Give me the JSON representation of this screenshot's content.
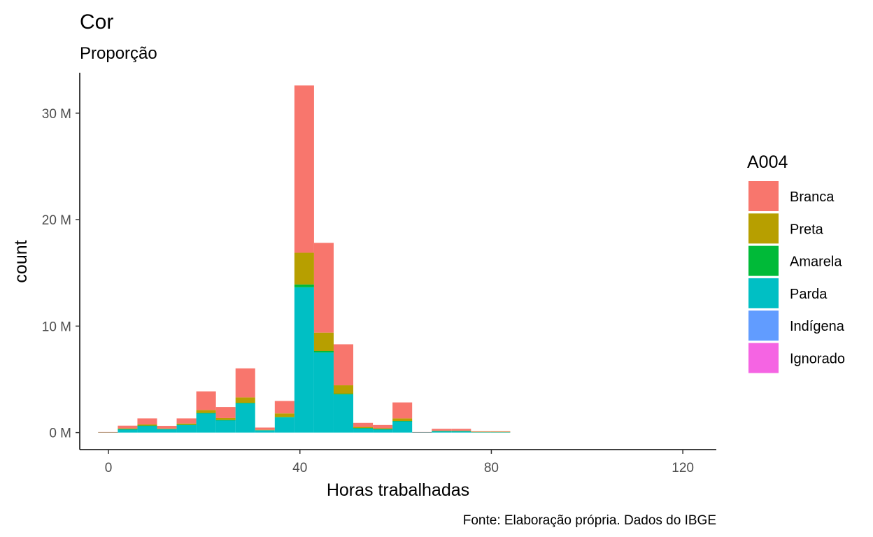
{
  "chart_data": {
    "type": "bar",
    "stacked": true,
    "title": "Cor",
    "subtitle": "Proporção",
    "xlabel": "Horas trabalhadas",
    "ylabel": "count",
    "caption": "Fonte: Elaboração própria. Dados do IBGE",
    "xlim": [
      -6,
      127
    ],
    "ylim": [
      -1.6,
      33.8
    ],
    "x_ticks": [
      0,
      40,
      80,
      120
    ],
    "x_tick_labels": [
      "0",
      "40",
      "80",
      "120"
    ],
    "y_ticks": [
      0,
      10,
      20,
      30
    ],
    "y_tick_labels": [
      "0 M",
      "10 M",
      "20 M",
      "30 M"
    ],
    "grid": false,
    "legend_position": "right",
    "legend_title": "A004",
    "bin_width": 4.1,
    "bin_centers": [
      -0.1,
      4.0,
      8.1,
      12.2,
      16.3,
      20.4,
      24.5,
      28.6,
      32.7,
      36.8,
      40.9,
      45.0,
      49.1,
      53.2,
      57.3,
      61.4,
      65.5,
      69.6,
      73.7,
      77.8,
      81.9
    ],
    "series": [
      {
        "name": "Parda",
        "color": "#00BFC4",
        "values": [
          0.03,
          0.32,
          0.65,
          0.33,
          0.73,
          1.82,
          1.16,
          2.75,
          0.22,
          1.43,
          13.65,
          7.52,
          3.58,
          0.42,
          0.32,
          1.07,
          0.02,
          0.15,
          0.15,
          0.06,
          0.06
        ]
      },
      {
        "name": "Amarela",
        "color": "#00BA38",
        "values": [
          0.0,
          0.01,
          0.01,
          0.0,
          0.01,
          0.02,
          0.02,
          0.05,
          0.0,
          0.04,
          0.26,
          0.14,
          0.07,
          0.01,
          0.01,
          0.02,
          0.0,
          0.0,
          0.0,
          0.0,
          0.0
        ]
      },
      {
        "name": "Preta",
        "color": "#B79F00",
        "values": [
          0.01,
          0.06,
          0.1,
          0.05,
          0.11,
          0.28,
          0.18,
          0.5,
          0.04,
          0.33,
          2.98,
          1.73,
          0.79,
          0.1,
          0.07,
          0.24,
          0.0,
          0.03,
          0.03,
          0.01,
          0.01
        ]
      },
      {
        "name": "Branca",
        "color": "#F8766D",
        "values": [
          0.01,
          0.26,
          0.57,
          0.25,
          0.48,
          1.75,
          1.04,
          2.73,
          0.21,
          1.17,
          15.71,
          8.43,
          3.85,
          0.38,
          0.31,
          1.5,
          0.03,
          0.17,
          0.17,
          0.05,
          0.05
        ]
      },
      {
        "name": "Indígena",
        "color": "#619CFF",
        "values": [
          0.0,
          0.0,
          0.0,
          0.0,
          0.0,
          0.0,
          0.0,
          0.0,
          0.0,
          0.0,
          0.0,
          0.0,
          0.0,
          0.0,
          0.0,
          0.0,
          0.0,
          0.0,
          0.0,
          0.0,
          0.0
        ]
      },
      {
        "name": "Ignorado",
        "color": "#F564E3",
        "values": [
          0.0,
          0.0,
          0.0,
          0.0,
          0.0,
          0.0,
          0.0,
          0.0,
          0.0,
          0.0,
          0.0,
          0.0,
          0.0,
          0.0,
          0.0,
          0.0,
          0.0,
          0.0,
          0.0,
          0.0,
          0.0
        ]
      }
    ],
    "legend_order": [
      "Branca",
      "Preta",
      "Amarela",
      "Parda",
      "Indígena",
      "Ignorado"
    ]
  }
}
